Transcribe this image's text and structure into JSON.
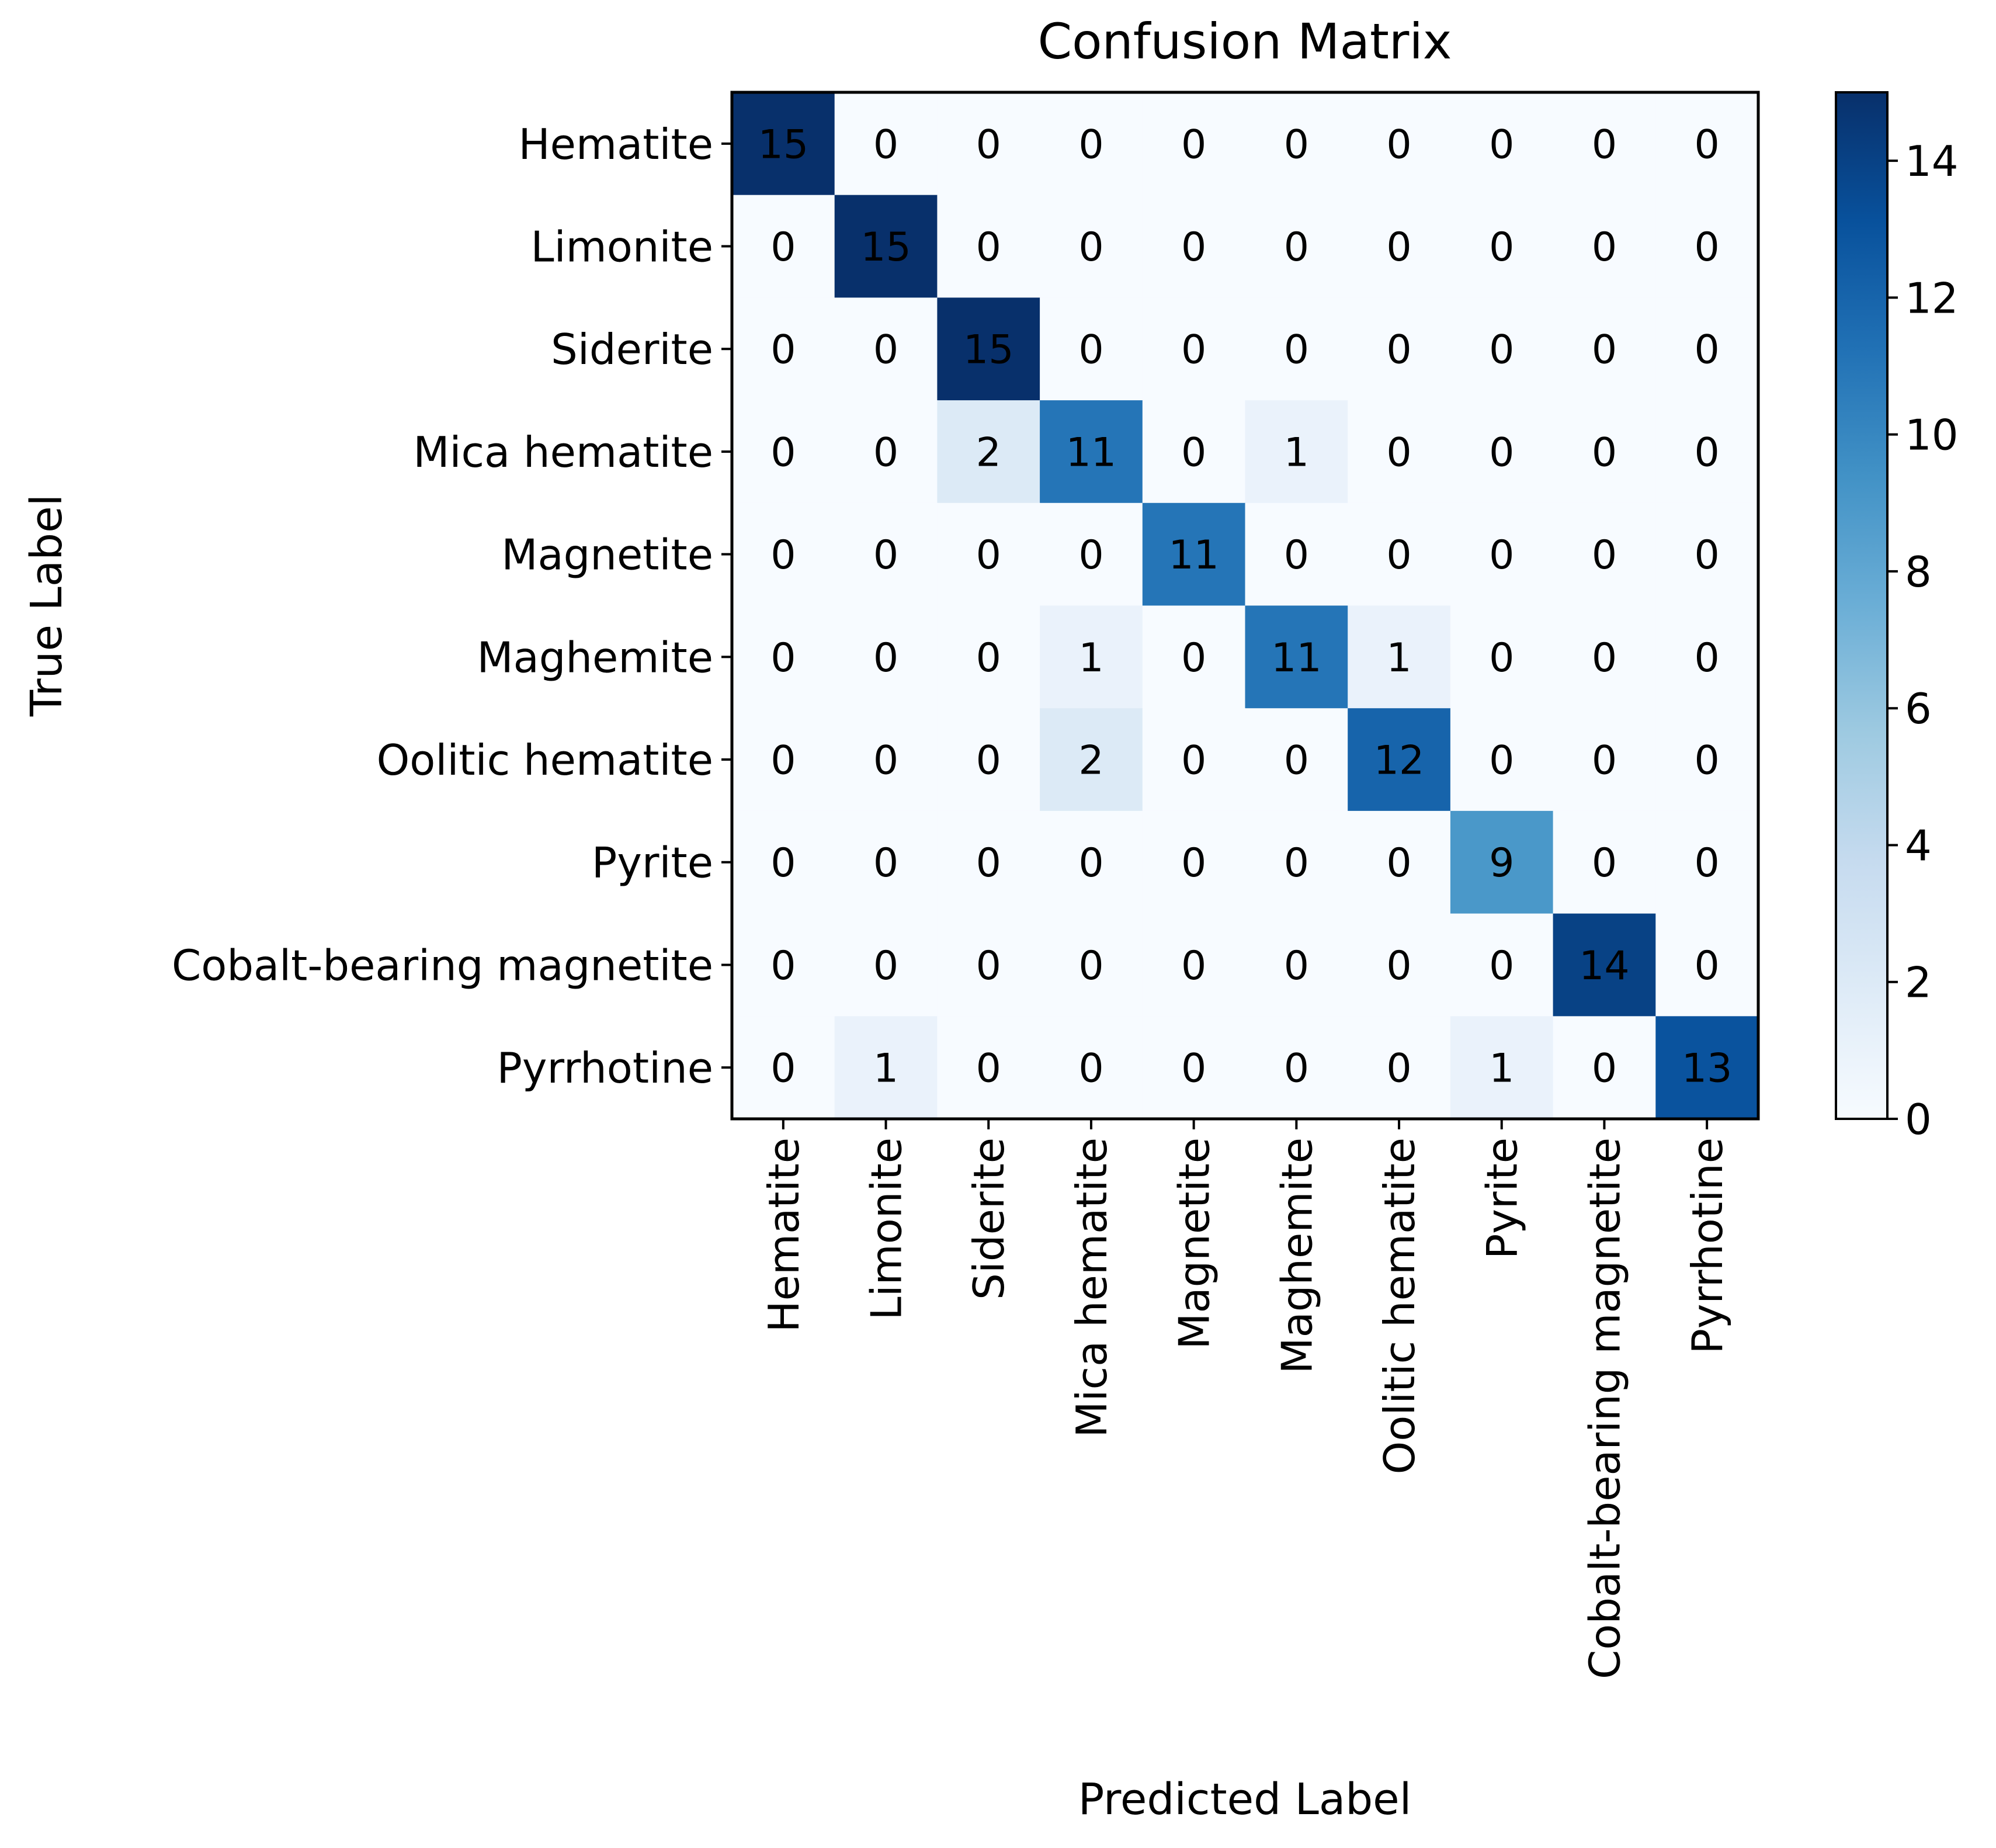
{
  "chart_data": {
    "type": "heatmap",
    "title": "Confusion Matrix",
    "xlabel": "Predicted Label",
    "ylabel": "True Label",
    "row_labels": [
      "Hematite",
      "Limonite",
      "Siderite",
      "Mica hematite",
      "Magnetite",
      "Maghemite",
      "Oolitic hematite",
      "Pyrite",
      "Cobalt-bearing magnetite",
      "Pyrrhotine"
    ],
    "col_labels": [
      "Hematite",
      "Limonite",
      "Siderite",
      "Mica hematite",
      "Magnetite",
      "Maghemite",
      "Oolitic hematite",
      "Pyrite",
      "Cobalt-bearing magnetite",
      "Pyrrhotine"
    ],
    "matrix": [
      [
        15,
        0,
        0,
        0,
        0,
        0,
        0,
        0,
        0,
        0
      ],
      [
        0,
        15,
        0,
        0,
        0,
        0,
        0,
        0,
        0,
        0
      ],
      [
        0,
        0,
        15,
        0,
        0,
        0,
        0,
        0,
        0,
        0
      ],
      [
        0,
        0,
        2,
        11,
        0,
        1,
        0,
        0,
        0,
        0
      ],
      [
        0,
        0,
        0,
        0,
        11,
        0,
        0,
        0,
        0,
        0
      ],
      [
        0,
        0,
        0,
        1,
        0,
        11,
        1,
        0,
        0,
        0
      ],
      [
        0,
        0,
        0,
        2,
        0,
        0,
        12,
        0,
        0,
        0
      ],
      [
        0,
        0,
        0,
        0,
        0,
        0,
        0,
        9,
        0,
        0
      ],
      [
        0,
        0,
        0,
        0,
        0,
        0,
        0,
        0,
        14,
        0
      ],
      [
        0,
        1,
        0,
        0,
        0,
        0,
        0,
        1,
        0,
        13
      ]
    ],
    "colorbar": {
      "colormap": "Blues",
      "min": 0,
      "max": 15,
      "ticks": [
        0,
        2,
        4,
        6,
        8,
        10,
        12,
        14
      ]
    }
  }
}
